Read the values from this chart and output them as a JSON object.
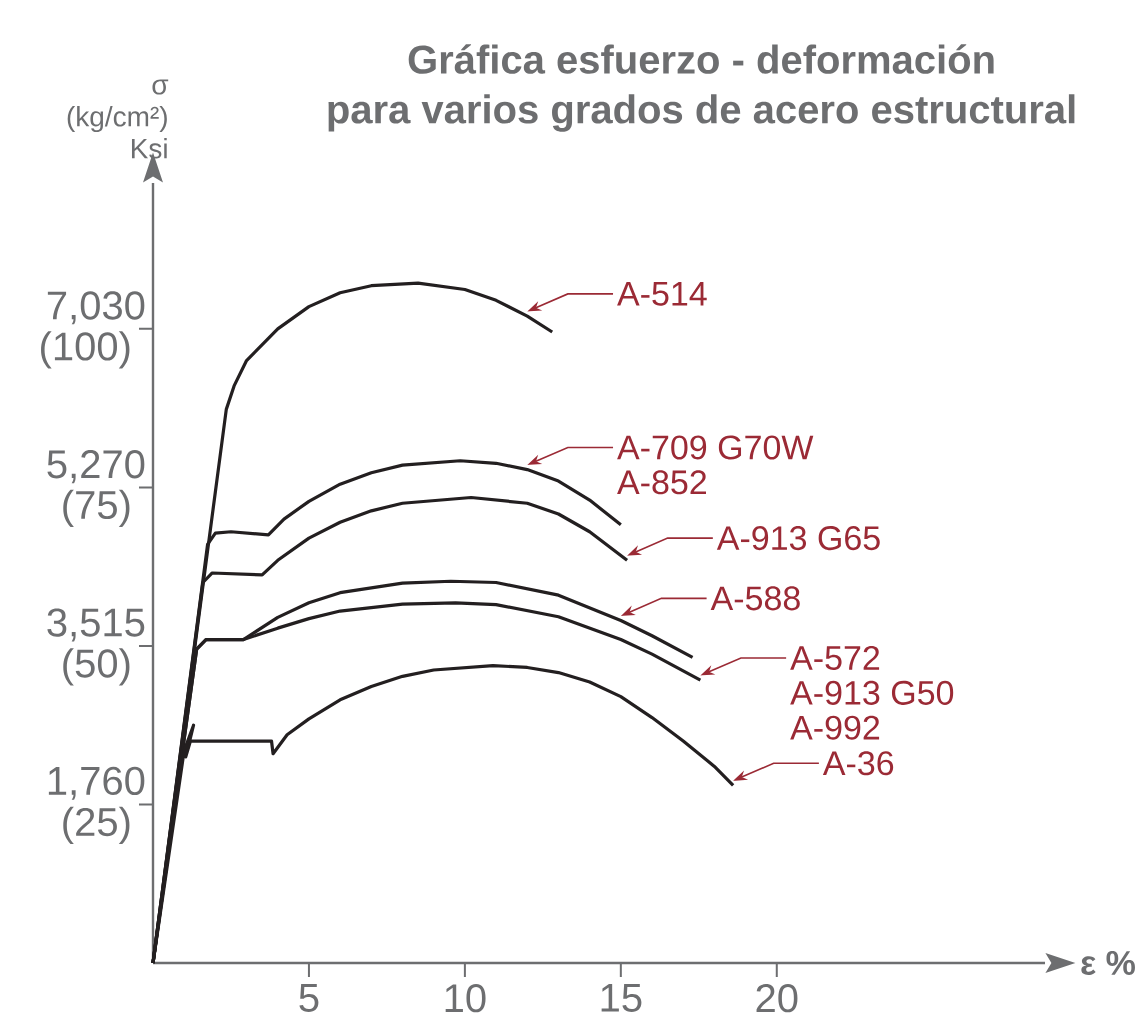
{
  "chart_data": {
    "type": "line",
    "title": "Gráfica esfuerzo - deformación",
    "subtitle": "para varios grados de acero estructural",
    "ylabel": "σ (kg/cm²) Ksi",
    "xlabel": "ε %",
    "xlim": [
      0,
      28.6
    ],
    "ylim": [
      0,
      8647
    ],
    "y2lim": [
      0,
      123
    ],
    "xticks": [
      5,
      10,
      15,
      20
    ],
    "yticks": [
      {
        "value": 1760,
        "label": "1,760"
      },
      {
        "value": 3515,
        "label": "3,515"
      },
      {
        "value": 5270,
        "label": "5,270"
      },
      {
        "value": 7030,
        "label": "7,030"
      }
    ],
    "y2ticks": [
      {
        "value": 25,
        "label": "(25)"
      },
      {
        "value": 50,
        "label": "(50)"
      },
      {
        "value": 75,
        "label": "(75)"
      },
      {
        "value": 100,
        "label": "(100)"
      }
    ],
    "marker": "none",
    "line_style": "solid",
    "series": [
      {
        "color": "#231f20",
        "axis": "y2",
        "x": [
          0,
          2.35,
          2.6,
          3.0,
          4,
          5,
          6,
          7,
          8.5,
          10,
          11,
          12,
          12.8
        ],
        "values": [
          0,
          87.3,
          91,
          95,
          100,
          103.5,
          105.7,
          106.8,
          107.2,
          106.2,
          104.5,
          102,
          99.5
        ]
      },
      {
        "color": "#231f20",
        "axis": "y2",
        "x": [
          0,
          1.75,
          2.0,
          2.5,
          3.7,
          4.2,
          5,
          6,
          7,
          8,
          9.85,
          11,
          12,
          13,
          14,
          15
        ],
        "values": [
          0,
          66,
          67.8,
          68,
          67.5,
          70,
          72.8,
          75.5,
          77.3,
          78.5,
          79.2,
          78.8,
          77.8,
          76,
          73,
          69.1
        ]
      },
      {
        "color": "#231f20",
        "axis": "y2",
        "x": [
          0,
          1.6,
          1.9,
          3.5,
          4,
          5,
          6,
          7,
          8,
          10.2,
          12,
          13,
          14,
          15.2
        ],
        "values": [
          0,
          60,
          61.5,
          61.2,
          63.5,
          67,
          69.5,
          71.3,
          72.5,
          73.4,
          72.5,
          70.8,
          68,
          63.5
        ]
      },
      {
        "color": "#231f20",
        "axis": "y2",
        "x": [
          0,
          1.4,
          1.7,
          2.9,
          4,
          5,
          6,
          8,
          9.55,
          11,
          13,
          15,
          16,
          17.3
        ],
        "values": [
          0,
          49.5,
          51,
          51,
          54.5,
          56.8,
          58.4,
          59.9,
          60.2,
          60,
          58,
          54,
          51.6,
          48.2
        ]
      },
      {
        "color": "#231f20",
        "axis": "y2",
        "x": [
          0,
          1.4,
          1.7,
          2.9,
          4,
          5,
          6,
          8,
          9.7,
          11,
          13,
          15,
          16,
          17.55
        ],
        "values": [
          0,
          49.5,
          51,
          51,
          52.8,
          54.3,
          55.5,
          56.6,
          56.8,
          56.5,
          54.6,
          51,
          48.7,
          44.6
        ]
      },
      {
        "color": "#231f20",
        "axis": "y2",
        "x": [
          0,
          1.0,
          1.3,
          1.05,
          1.2,
          3.8,
          3.85,
          4.3,
          5,
          6,
          7,
          8,
          9,
          10.9,
          12,
          13,
          14,
          15,
          16,
          17,
          18,
          18.6
        ],
        "values": [
          0,
          33.5,
          37.5,
          32.5,
          35,
          35,
          33,
          36,
          38.5,
          41.5,
          43.6,
          45.2,
          46.2,
          46.9,
          46.6,
          45.8,
          44.3,
          42,
          38.7,
          35,
          31,
          28
        ]
      }
    ],
    "annotations": [
      {
        "text": "A-514",
        "x": 12,
        "y": 7171
      },
      {
        "text": "A-709 G70W",
        "x": 12,
        "y": 5469
      },
      {
        "text": "A-852",
        "x": 12,
        "y": 5469
      },
      {
        "text": "A-913 G65",
        "x": 15.2,
        "y": 4464
      },
      {
        "text": "A-588",
        "x": 15,
        "y": 3796
      },
      {
        "text": "A-572",
        "x": 17.55,
        "y": 3135
      },
      {
        "text": "A-913 G50",
        "x": 17.55,
        "y": 3135
      },
      {
        "text": "A-992",
        "x": 17.55,
        "y": 3135
      },
      {
        "text": "A-36",
        "x": 18.6,
        "y": 1968
      }
    ]
  }
}
